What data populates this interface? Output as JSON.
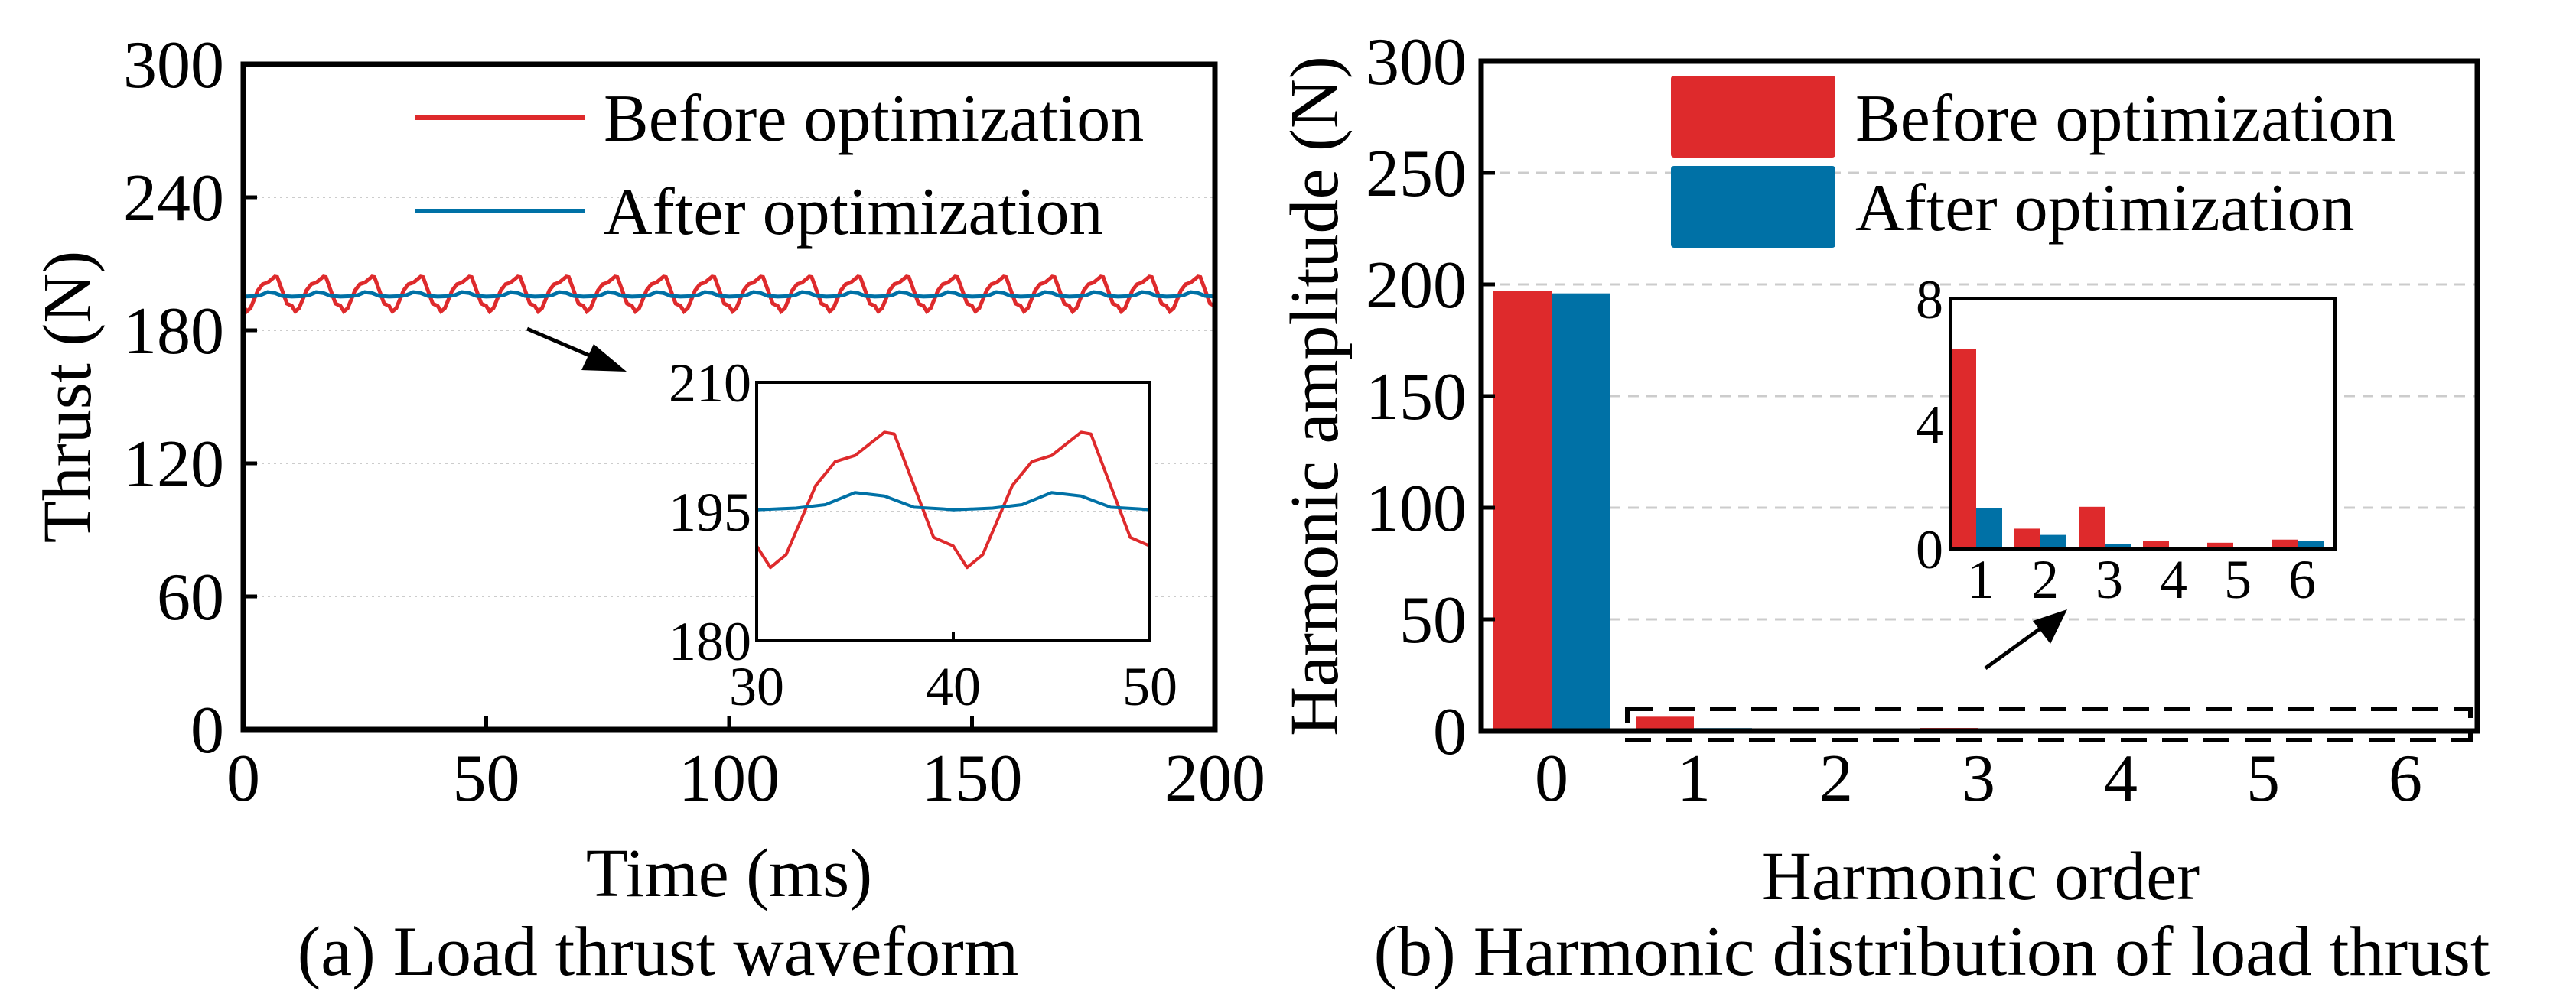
{
  "colors": {
    "before": "#de2a2c",
    "after": "#0071a6",
    "grid": "#cccccc"
  },
  "chart_data": [
    {
      "id": "a",
      "type": "line",
      "caption": "(a) Load thrust waveform",
      "xlabel": "Time (ms)",
      "ylabel": "Thrust (N)",
      "xlim": [
        0,
        200
      ],
      "ylim": [
        0,
        300
      ],
      "xticks": [
        "0",
        "50",
        "100",
        "150",
        "200"
      ],
      "xtick_values": [
        0,
        50,
        100,
        150,
        200
      ],
      "yticks": [
        "0",
        "60",
        "120",
        "180",
        "240",
        "300"
      ],
      "ytick_values": [
        0,
        60,
        120,
        180,
        240,
        300
      ],
      "grid": "horizontal-dotted",
      "legend_position": "top-right",
      "period_ms": 10,
      "series": [
        {
          "name": "Before optimization",
          "color_key": "before",
          "period_template": [
            [
              0,
              191
            ],
            [
              0.7,
              188.5
            ],
            [
              1.5,
              190
            ],
            [
              3,
              198
            ],
            [
              4,
              200.8
            ],
            [
              5,
              201.5
            ],
            [
              6.5,
              204.2
            ],
            [
              7,
              204
            ],
            [
              8.5,
              195
            ],
            [
              9,
              192
            ],
            [
              10,
              191
            ]
          ]
        },
        {
          "name": "After optimization",
          "color_key": "after",
          "period_template": [
            [
              0,
              195.2
            ],
            [
              2,
              195.4
            ],
            [
              3.5,
              195.8
            ],
            [
              5,
              197.2
            ],
            [
              6.5,
              196.8
            ],
            [
              8,
              195.5
            ],
            [
              9.5,
              195.3
            ],
            [
              10,
              195.2
            ]
          ]
        }
      ],
      "inset": {
        "xlim": [
          30,
          50
        ],
        "ylim": [
          180,
          210
        ],
        "xticks": [
          "30",
          "40",
          "50"
        ],
        "xtick_values": [
          30,
          40,
          50
        ],
        "yticks": [
          "180",
          "195",
          "210"
        ],
        "ytick_values": [
          180,
          195,
          210
        ]
      }
    },
    {
      "id": "b",
      "type": "bar",
      "caption": "(b) Harmonic distribution of load thrust",
      "xlabel": "Harmonic order",
      "ylabel": "Harmonic amplitude (N)",
      "categories": [
        "0",
        "1",
        "2",
        "3",
        "4",
        "5",
        "6"
      ],
      "ylim": [
        0,
        300
      ],
      "yticks": [
        "0",
        "50",
        "100",
        "150",
        "200",
        "250",
        "300"
      ],
      "ytick_values": [
        0,
        50,
        100,
        150,
        200,
        250,
        300
      ],
      "grid": "horizontal-dashed",
      "legend_position": "top-right",
      "series": [
        {
          "name": "Before optimization",
          "color_key": "before",
          "values": [
            197,
            6.4,
            0.65,
            1.35,
            0.25,
            0.2,
            0.3
          ]
        },
        {
          "name": "After optimization",
          "color_key": "after",
          "values": [
            196,
            1.3,
            0.45,
            0.15,
            0.05,
            0.05,
            0.25
          ]
        }
      ],
      "inset": {
        "categories": [
          "1",
          "2",
          "3",
          "4",
          "5",
          "6"
        ],
        "ylim": [
          0,
          8
        ],
        "yticks": [
          "0",
          "4",
          "8"
        ],
        "ytick_values": [
          0,
          4,
          8
        ]
      }
    }
  ]
}
